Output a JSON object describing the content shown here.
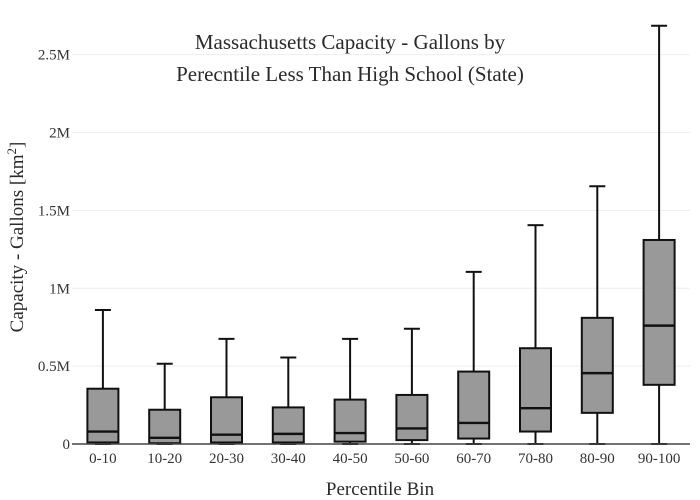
{
  "chart_data": {
    "type": "box",
    "title_lines": [
      "Massachusetts Capacity - Gallons by",
      "Perecntile Less Than High School (State)"
    ],
    "xlabel": "Percentile Bin",
    "ylabel_main": "Capacity - Gallons  [km",
    "ylabel_sup": "2",
    "ylabel_end": "]",
    "ylim": [
      0,
      2700000
    ],
    "yticks": [
      {
        "value": 0,
        "label": "0"
      },
      {
        "value": 500000,
        "label": "0.5M"
      },
      {
        "value": 1000000,
        "label": "1M"
      },
      {
        "value": 1500000,
        "label": "1.5M"
      },
      {
        "value": 2000000,
        "label": "2M"
      },
      {
        "value": 2500000,
        "label": "2.5M"
      }
    ],
    "grid": true,
    "box_color": "#999999",
    "line_color": "#111111",
    "categories": [
      "0-10",
      "10-20",
      "20-30",
      "30-40",
      "40-50",
      "50-60",
      "60-70",
      "70-80",
      "80-90",
      "90-100"
    ],
    "boxes": [
      {
        "min": 0,
        "q1": 10000,
        "median": 80000,
        "q3": 355000,
        "max": 860000
      },
      {
        "min": 0,
        "q1": 5000,
        "median": 40000,
        "q3": 220000,
        "max": 515000
      },
      {
        "min": 0,
        "q1": 10000,
        "median": 60000,
        "q3": 300000,
        "max": 675000
      },
      {
        "min": 0,
        "q1": 10000,
        "median": 65000,
        "q3": 235000,
        "max": 555000
      },
      {
        "min": 0,
        "q1": 15000,
        "median": 70000,
        "q3": 285000,
        "max": 675000
      },
      {
        "min": 0,
        "q1": 25000,
        "median": 100000,
        "q3": 315000,
        "max": 740000
      },
      {
        "min": 0,
        "q1": 35000,
        "median": 135000,
        "q3": 465000,
        "max": 1105000
      },
      {
        "min": 0,
        "q1": 80000,
        "median": 230000,
        "q3": 615000,
        "max": 1405000
      },
      {
        "min": 0,
        "q1": 200000,
        "median": 455000,
        "q3": 810000,
        "max": 1655000
      },
      {
        "min": 0,
        "q1": 380000,
        "median": 760000,
        "q3": 1310000,
        "max": 2685000
      }
    ]
  }
}
